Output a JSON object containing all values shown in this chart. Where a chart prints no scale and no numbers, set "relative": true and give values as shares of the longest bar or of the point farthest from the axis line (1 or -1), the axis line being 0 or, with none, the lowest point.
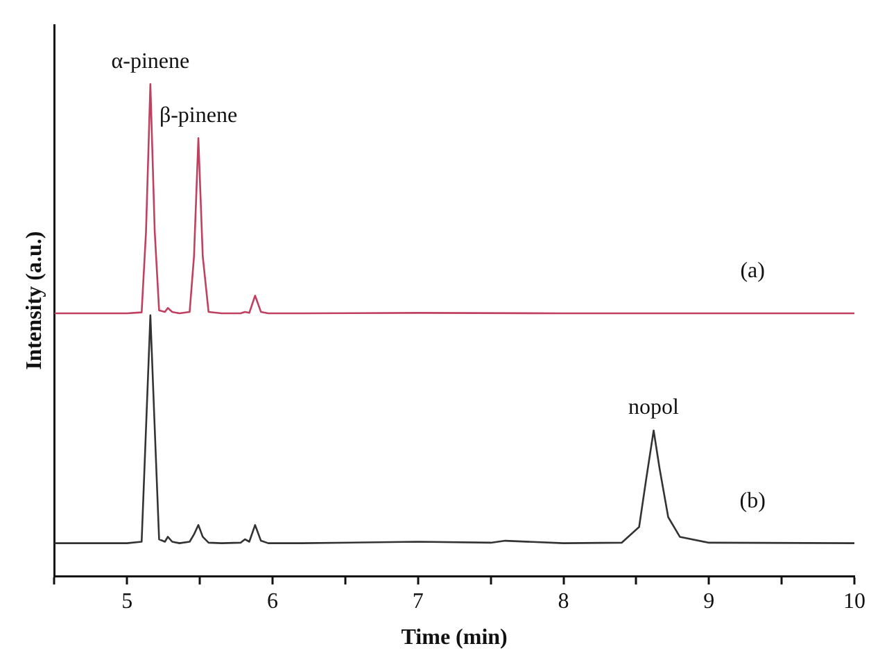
{
  "chart_data": {
    "type": "line",
    "relative": true,
    "xlabel": "Time (min)",
    "ylabel": "Intensity (a.u.)",
    "xlim": [
      4.5,
      10
    ],
    "xticks": [
      {
        "value": 4.5,
        "label": null
      },
      5,
      {
        "value": 5.5,
        "label": null
      },
      6,
      {
        "value": 6.5,
        "label": null
      },
      7,
      {
        "value": 7.5,
        "label": null
      },
      8,
      {
        "value": 8.5,
        "label": null
      },
      9,
      {
        "value": 9.5,
        "label": null
      },
      10
    ],
    "tick_labels": "x",
    "grid": false,
    "legend": false,
    "marker": "none",
    "line_style": "solid",
    "annotations": [
      {
        "text": "α-pinene",
        "x": 5.16,
        "y": 1.0
      },
      {
        "text": "β-pinene",
        "x": 5.49,
        "y": 0.89
      },
      {
        "text": "nopol",
        "x": 8.62,
        "y": 0.296
      }
    ],
    "series": [
      {
        "name": "(a)",
        "color": "#c04060",
        "x": [
          4.5,
          5.0,
          5.1,
          5.13,
          5.16,
          5.19,
          5.22,
          5.26,
          5.28,
          5.31,
          5.36,
          5.43,
          5.46,
          5.49,
          5.52,
          5.56,
          5.65,
          5.78,
          5.81,
          5.84,
          5.88,
          5.92,
          5.97,
          6.2,
          7,
          8,
          9,
          10
        ],
        "values": [
          0.534,
          0.534,
          0.536,
          0.7,
          1.0,
          0.7,
          0.54,
          0.537,
          0.545,
          0.537,
          0.534,
          0.537,
          0.65,
          0.89,
          0.65,
          0.537,
          0.534,
          0.534,
          0.537,
          0.535,
          0.57,
          0.537,
          0.534,
          0.534,
          0.535,
          0.534,
          0.534,
          0.534
        ]
      },
      {
        "name": "(b)",
        "color": "#333333",
        "x": [
          4.5,
          5.0,
          5.1,
          5.13,
          5.16,
          5.19,
          5.22,
          5.26,
          5.28,
          5.31,
          5.36,
          5.43,
          5.46,
          5.49,
          5.52,
          5.56,
          5.65,
          5.78,
          5.81,
          5.84,
          5.88,
          5.92,
          5.97,
          6.2,
          7,
          7.5,
          7.6,
          8,
          8.4,
          8.52,
          8.57,
          8.62,
          8.66,
          8.72,
          8.8,
          9,
          10
        ],
        "values": [
          0.067,
          0.067,
          0.07,
          0.3,
          0.53,
          0.3,
          0.075,
          0.07,
          0.08,
          0.07,
          0.067,
          0.07,
          0.085,
          0.104,
          0.08,
          0.068,
          0.067,
          0.068,
          0.075,
          0.07,
          0.104,
          0.072,
          0.067,
          0.067,
          0.07,
          0.068,
          0.072,
          0.067,
          0.068,
          0.1,
          0.2,
          0.296,
          0.22,
          0.12,
          0.08,
          0.068,
          0.067
        ]
      }
    ]
  }
}
